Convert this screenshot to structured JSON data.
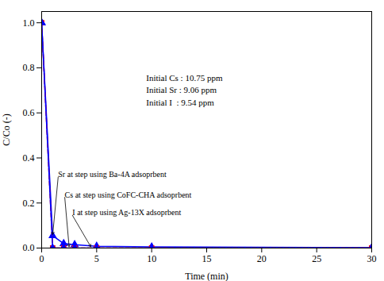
{
  "chart_data": {
    "type": "line",
    "title": "",
    "xlabel": "Time (min)",
    "ylabel": "C/Co (-)",
    "x": [
      0,
      1,
      2,
      3,
      5,
      10,
      30
    ],
    "series": [
      {
        "color": "#0000FF",
        "marker": "triangle",
        "line_style": "solid",
        "values": [
          1.0,
          0.055,
          0.02,
          0.015,
          0.008,
          0.005,
          0.002
        ]
      },
      {
        "color": "#FF0000",
        "marker": "square",
        "line_style": "dashed",
        "values": [
          1.0,
          0.0,
          0.0,
          0.0,
          0.0,
          0.0,
          0.0
        ]
      },
      {
        "color": "#0000FF",
        "marker": "triangle",
        "line_style": "solid",
        "values": [
          1.0,
          0.0,
          0.0,
          0.0,
          0.0,
          0.0,
          0.0
        ]
      }
    ],
    "xlim": [
      0,
      30
    ],
    "ylim": [
      0,
      1.05
    ],
    "xticks": [
      0,
      5,
      10,
      15,
      20,
      25,
      30
    ],
    "yticks": [
      {
        "value": 0.0,
        "label": "0.0"
      },
      0.2,
      0.4,
      0.6,
      0.8,
      {
        "value": 1.0,
        "label": "1.0"
      }
    ],
    "grid": false,
    "annotations": [
      {
        "text": "Initial Cs : 10.75 ppm\nInitial Sr : 9.06 ppm\nInitial I  : 9.54 ppm",
        "x": 9.5,
        "y": 0.78
      },
      {
        "text": "Sr at step using Ba-4A adsoprbent",
        "x": 1.5,
        "y": 0.315,
        "arrow_to": [
          1.0,
          0.057
        ]
      },
      {
        "text": "Cs at step using CoFC-CHA adsoprbent",
        "x": 2.1,
        "y": 0.225,
        "arrow_to": [
          2.5,
          0.003
        ]
      },
      {
        "text": "I at step using Ag-13X adsoprbent",
        "x": 2.8,
        "y": 0.145,
        "arrow_to": [
          4.5,
          0.003
        ]
      }
    ]
  }
}
